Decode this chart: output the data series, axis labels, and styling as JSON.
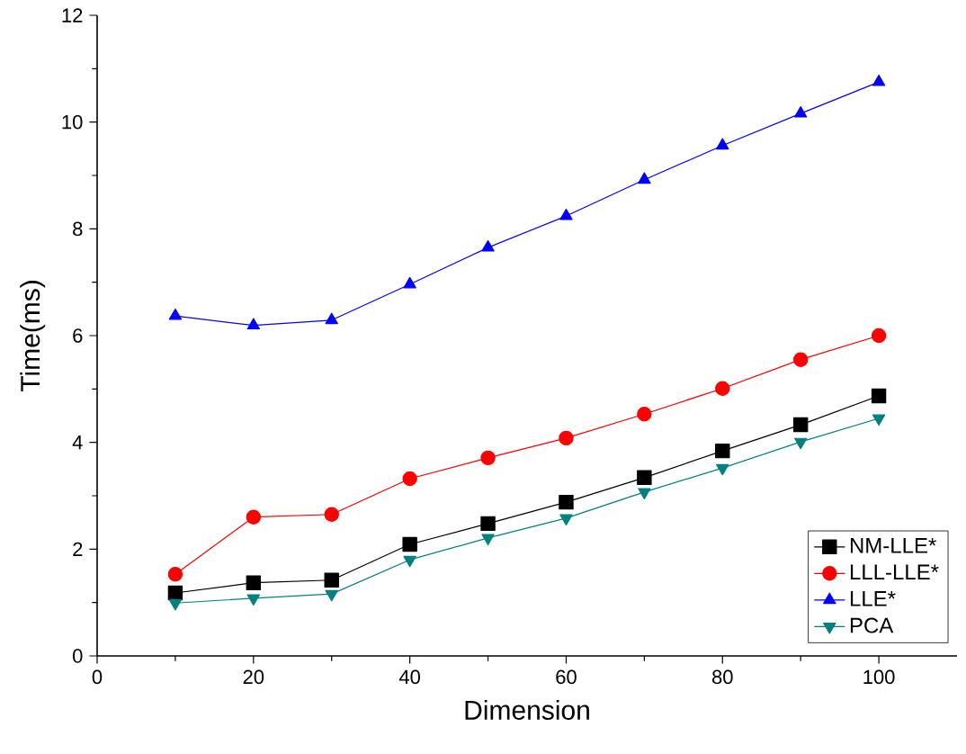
{
  "chart_data": {
    "type": "line",
    "xlabel": "Dimension",
    "ylabel": "Time(ms)",
    "x": [
      10,
      20,
      30,
      40,
      50,
      60,
      70,
      80,
      90,
      100
    ],
    "series": [
      {
        "name": "NM-LLE*",
        "color": "#000000",
        "marker": "square",
        "values": [
          1.18,
          1.37,
          1.42,
          2.09,
          2.48,
          2.88,
          3.34,
          3.84,
          4.33,
          4.87
        ]
      },
      {
        "name": "LLL-LLE*",
        "color": "#ff0000",
        "marker": "circle",
        "values": [
          1.53,
          2.6,
          2.65,
          3.32,
          3.71,
          4.08,
          4.53,
          5.01,
          5.55,
          6.0
        ]
      },
      {
        "name": "LLE*",
        "color": "#0000ff",
        "marker": "triangle",
        "values": [
          6.37,
          6.19,
          6.29,
          6.96,
          7.65,
          8.24,
          8.92,
          9.56,
          10.16,
          10.75
        ]
      },
      {
        "name": "PCA",
        "color": "#008080",
        "marker": "triangle-down",
        "values": [
          0.99,
          1.08,
          1.16,
          1.8,
          2.21,
          2.58,
          3.07,
          3.52,
          4.01,
          4.45
        ]
      }
    ],
    "xlim": [
      0,
      110
    ],
    "ylim": [
      0,
      12
    ],
    "xticks": [
      0,
      20,
      40,
      60,
      80,
      100
    ],
    "yticks": [
      0,
      2,
      4,
      6,
      8,
      10,
      12
    ],
    "legend": "bottom right",
    "grid": false,
    "line_style": "solid"
  }
}
